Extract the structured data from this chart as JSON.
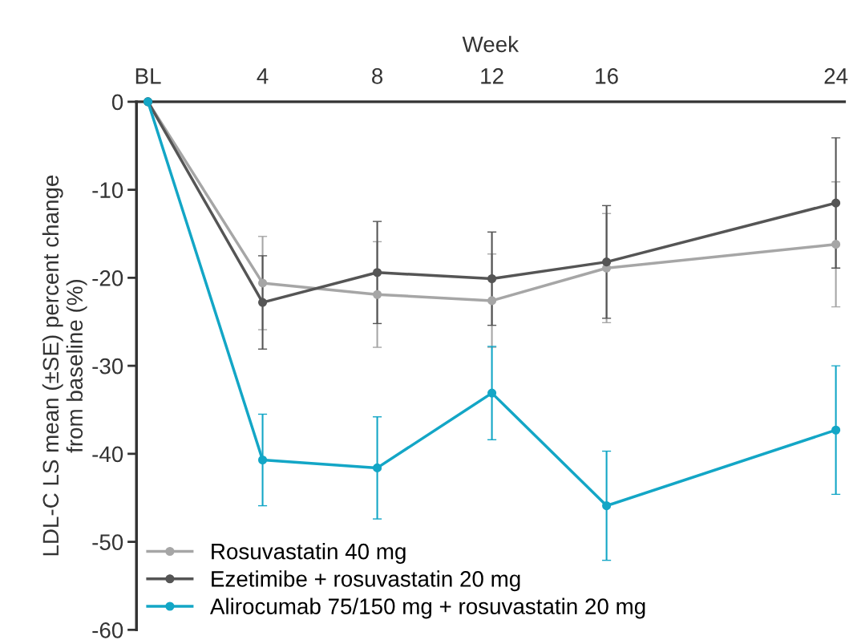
{
  "chart_data": {
    "type": "line",
    "xlabel": "Week",
    "ylabel": "LDL-C LS mean (±SE) percent change\nfrom baseline (%)",
    "x": [
      0,
      4,
      8,
      12,
      16,
      24
    ],
    "xlim": [
      -0.4,
      24.3
    ],
    "xticks": [
      {
        "value": 0,
        "label": "BL"
      },
      4,
      8,
      12,
      16,
      24
    ],
    "ylim": [
      -60,
      0
    ],
    "yticks": [
      0,
      -10,
      -20,
      -30,
      -40,
      -50,
      -60
    ],
    "series": [
      {
        "name": "Rosuvastatin 40 mg",
        "color": "#a6a6a6",
        "values": [
          0,
          -20.6,
          -21.9,
          -22.6,
          -18.9,
          -16.2
        ],
        "errors": [
          null,
          5.3,
          6.0,
          5.3,
          6.2,
          7.1
        ]
      },
      {
        "name": "Ezetimibe + rosuvastatin 20 mg",
        "color": "#555555",
        "values": [
          0,
          -22.8,
          -19.4,
          -20.1,
          -18.2,
          -11.5
        ],
        "errors": [
          null,
          5.3,
          5.8,
          5.3,
          6.4,
          7.4
        ]
      },
      {
        "name": "Alirocumab 75/150 mg + rosuvastatin 20 mg",
        "color": "#13a6c6",
        "values": [
          0,
          -40.7,
          -41.6,
          -33.1,
          -45.9,
          -37.3
        ],
        "errors": [
          null,
          5.2,
          5.8,
          5.3,
          6.2,
          7.3
        ]
      }
    ],
    "marker": "circle",
    "legend": "bottom left",
    "grid": false
  }
}
